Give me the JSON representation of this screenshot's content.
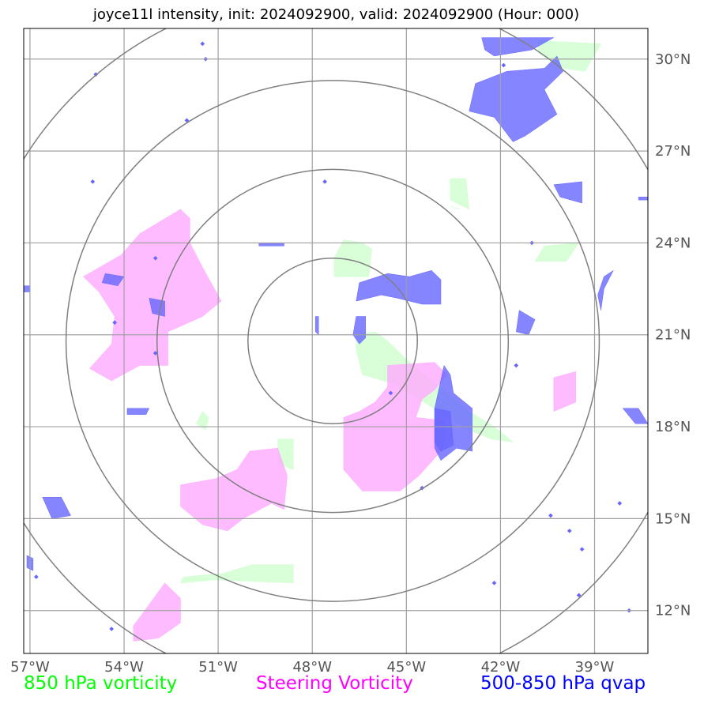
{
  "title": "joyce11l intensity, init: 2024092900, valid: 2024092900 (Hour: 000)",
  "map": {
    "lon_range": [
      -57.2,
      -37.3
    ],
    "lat_range": [
      10.6,
      31.0
    ],
    "lon_ticks": [
      {
        "value": -57,
        "label": "57°W"
      },
      {
        "value": -54,
        "label": "54°W"
      },
      {
        "value": -51,
        "label": "51°W"
      },
      {
        "value": -48,
        "label": "48°W"
      },
      {
        "value": -45,
        "label": "45°W"
      },
      {
        "value": -42,
        "label": "42°W"
      },
      {
        "value": -39,
        "label": "39°W"
      }
    ],
    "lat_ticks": [
      {
        "value": 30,
        "label": "30°N"
      },
      {
        "value": 27,
        "label": "27°N"
      },
      {
        "value": 24,
        "label": "24°N"
      },
      {
        "value": 21,
        "label": "21°N"
      },
      {
        "value": 18,
        "label": "18°N"
      },
      {
        "value": 15,
        "label": "15°N"
      },
      {
        "value": 12,
        "label": "12°N"
      }
    ],
    "range_rings_deg": [
      2.7,
      5.6,
      8.5,
      11.5
    ],
    "storm_center": {
      "lon": -47.35,
      "lat": 20.8
    },
    "colors": {
      "vorticity_850": "#ccffcc",
      "steering_vorticity": "#ffaaff",
      "qvap": "#6666ff",
      "ring": "#808080",
      "grid": "#a0a0a0"
    }
  },
  "fields": {
    "vorticity_850": [
      [
        [
          -46.4,
          24.0
        ],
        [
          -47.0,
          24.1
        ],
        [
          -47.3,
          23.5
        ],
        [
          -47.3,
          22.9
        ],
        [
          -46.2,
          22.9
        ],
        [
          -46.1,
          23.8
        ]
      ],
      [
        [
          -46.6,
          21.0
        ],
        [
          -46.0,
          21.1
        ],
        [
          -45.6,
          20.8
        ],
        [
          -45.0,
          20.2
        ],
        [
          -44.3,
          19.6
        ],
        [
          -43.6,
          19.0
        ],
        [
          -43.0,
          18.5
        ],
        [
          -42.2,
          18.0
        ],
        [
          -41.6,
          17.5
        ],
        [
          -42.3,
          17.6
        ],
        [
          -43.0,
          17.9
        ],
        [
          -43.8,
          18.4
        ],
        [
          -44.6,
          18.9
        ],
        [
          -45.4,
          19.4
        ],
        [
          -46.4,
          19.7
        ],
        [
          -46.6,
          20.5
        ]
      ],
      [
        [
          -43.6,
          26.1
        ],
        [
          -43.1,
          26.1
        ],
        [
          -43.0,
          25.1
        ],
        [
          -43.6,
          25.4
        ]
      ],
      [
        [
          -40.6,
          23.9
        ],
        [
          -39.5,
          24.0
        ],
        [
          -39.9,
          23.4
        ],
        [
          -40.9,
          23.4
        ]
      ],
      [
        [
          -43.6,
          25.2
        ],
        [
          -43.3,
          25.1
        ]
      ],
      [
        [
          -40.8,
          30.6
        ],
        [
          -38.8,
          30.5
        ],
        [
          -39.3,
          29.6
        ],
        [
          -40.0,
          29.7
        ],
        [
          -40.8,
          30.2
        ]
      ],
      [
        [
          -49.1,
          17.6
        ],
        [
          -48.6,
          17.6
        ],
        [
          -48.6,
          16.6
        ],
        [
          -49.1,
          16.8
        ]
      ],
      [
        [
          -50.9,
          13.2
        ],
        [
          -49.9,
          13.5
        ],
        [
          -48.6,
          13.5
        ],
        [
          -48.6,
          12.9
        ],
        [
          -51.1,
          13.0
        ],
        [
          -52.2,
          12.9
        ],
        [
          -52.1,
          13.1
        ]
      ],
      [
        [
          -51.5,
          18.5
        ],
        [
          -51.3,
          18.3
        ],
        [
          -51.4,
          17.9
        ],
        [
          -51.7,
          18.1
        ]
      ]
    ],
    "steering_vorticity": [
      [
        [
          -52.2,
          25.1
        ],
        [
          -53.5,
          24.3
        ],
        [
          -54.1,
          23.6
        ],
        [
          -55.3,
          22.9
        ],
        [
          -54.8,
          22.4
        ],
        [
          -54.3,
          21.6
        ],
        [
          -54.4,
          20.7
        ],
        [
          -55.1,
          19.9
        ],
        [
          -54.4,
          19.5
        ],
        [
          -53.5,
          20.0
        ],
        [
          -52.6,
          20.0
        ],
        [
          -52.6,
          21.1
        ],
        [
          -51.5,
          21.6
        ],
        [
          -50.9,
          22.1
        ],
        [
          -51.5,
          23.2
        ],
        [
          -51.9,
          24.0
        ],
        [
          -51.9,
          24.8
        ]
      ],
      [
        [
          -45.6,
          20.0
        ],
        [
          -44.1,
          20.1
        ],
        [
          -43.7,
          19.7
        ],
        [
          -44.1,
          19.2
        ],
        [
          -44.5,
          18.9
        ],
        [
          -44.7,
          18.3
        ],
        [
          -43.8,
          18.2
        ],
        [
          -43.7,
          17.8
        ],
        [
          -43.9,
          17.2
        ],
        [
          -44.6,
          16.4
        ],
        [
          -45.2,
          15.9
        ],
        [
          -46.4,
          15.9
        ],
        [
          -47.0,
          16.6
        ],
        [
          -47.0,
          18.3
        ],
        [
          -46.5,
          18.5
        ],
        [
          -46.0,
          18.8
        ],
        [
          -45.6,
          19.3
        ]
      ],
      [
        [
          -50.0,
          17.2
        ],
        [
          -49.1,
          17.3
        ],
        [
          -48.8,
          16.4
        ],
        [
          -48.9,
          15.3
        ],
        [
          -49.3,
          15.5
        ],
        [
          -50.2,
          15.0
        ],
        [
          -50.7,
          14.6
        ],
        [
          -51.5,
          14.8
        ],
        [
          -52.2,
          15.4
        ],
        [
          -52.2,
          16.1
        ],
        [
          -51.1,
          16.3
        ],
        [
          -50.4,
          16.6
        ]
      ],
      [
        [
          -40.3,
          19.6
        ],
        [
          -39.6,
          19.8
        ],
        [
          -39.6,
          18.8
        ],
        [
          -40.3,
          18.5
        ]
      ],
      [
        [
          -52.7,
          12.9
        ],
        [
          -52.2,
          12.4
        ],
        [
          -52.2,
          11.6
        ],
        [
          -52.9,
          11.1
        ],
        [
          -53.7,
          11.0
        ],
        [
          -53.7,
          11.5
        ],
        [
          -53.2,
          12.2
        ]
      ]
    ],
    "qvap": [
      [
        [
          -46.5,
          22.7
        ],
        [
          -45.6,
          23.0
        ],
        [
          -44.9,
          22.9
        ],
        [
          -44.2,
          23.1
        ],
        [
          -43.9,
          22.8
        ],
        [
          -43.9,
          22.0
        ],
        [
          -44.5,
          22.0
        ],
        [
          -45.3,
          22.2
        ],
        [
          -45.8,
          22.3
        ],
        [
          -46.6,
          22.1
        ]
      ],
      [
        [
          -44.1,
          18.6
        ],
        [
          -43.8,
          20.0
        ],
        [
          -43.6,
          19.7
        ],
        [
          -43.5,
          19.1
        ],
        [
          -42.9,
          18.6
        ],
        [
          -42.9,
          17.2
        ],
        [
          -43.4,
          17.3
        ],
        [
          -43.9,
          16.9
        ],
        [
          -44.1,
          17.3
        ]
      ],
      [
        [
          -44.1,
          18.6
        ],
        [
          -43.6,
          18.5
        ],
        [
          -43.5,
          17.4
        ],
        [
          -43.9,
          17.2
        ],
        [
          -44.1,
          17.5
        ]
      ],
      [
        [
          -46.6,
          21.6
        ],
        [
          -46.3,
          21.6
        ],
        [
          -46.3,
          20.9
        ],
        [
          -46.5,
          20.7
        ],
        [
          -46.7,
          21.0
        ]
      ],
      [
        [
          -42.8,
          29.2
        ],
        [
          -41.8,
          29.6
        ],
        [
          -40.6,
          29.7
        ],
        [
          -40.2,
          30.1
        ],
        [
          -40.0,
          29.6
        ],
        [
          -40.6,
          29.0
        ],
        [
          -40.2,
          28.2
        ],
        [
          -41.2,
          27.5
        ],
        [
          -41.6,
          27.3
        ],
        [
          -42.2,
          28.1
        ],
        [
          -43.0,
          28.3
        ]
      ],
      [
        [
          -42.6,
          30.7
        ],
        [
          -41.2,
          30.7
        ],
        [
          -40.3,
          30.7
        ],
        [
          -41.0,
          30.3
        ],
        [
          -41.6,
          30.2
        ],
        [
          -42.2,
          30.1
        ],
        [
          -42.5,
          30.3
        ]
      ],
      [
        [
          -40.3,
          25.9
        ],
        [
          -40.1,
          25.5
        ],
        [
          -39.4,
          25.3
        ],
        [
          -39.4,
          26.0
        ]
      ],
      [
        [
          -38.7,
          22.9
        ],
        [
          -38.4,
          23.1
        ],
        [
          -38.7,
          22.5
        ],
        [
          -38.8,
          21.8
        ],
        [
          -38.9,
          22.3
        ]
      ],
      [
        [
          -54.6,
          23.0
        ],
        [
          -54.0,
          22.9
        ],
        [
          -54.2,
          22.6
        ],
        [
          -54.7,
          22.7
        ]
      ],
      [
        [
          -53.2,
          22.2
        ],
        [
          -52.7,
          22.1
        ],
        [
          -52.7,
          21.6
        ],
        [
          -53.1,
          21.7
        ]
      ],
      [
        [
          -41.4,
          21.8
        ],
        [
          -40.9,
          21.5
        ],
        [
          -41.1,
          21.0
        ],
        [
          -41.5,
          21.1
        ]
      ],
      [
        [
          -47.9,
          21.6
        ],
        [
          -47.8,
          21.6
        ],
        [
          -47.8,
          21.0
        ],
        [
          -47.9,
          21.1
        ]
      ],
      [
        [
          -49.7,
          24.0
        ],
        [
          -48.9,
          24.0
        ],
        [
          -48.9,
          23.9
        ],
        [
          -49.7,
          23.9
        ]
      ],
      [
        [
          -53.9,
          18.6
        ],
        [
          -53.2,
          18.6
        ],
        [
          -53.3,
          18.4
        ],
        [
          -53.9,
          18.4
        ]
      ],
      [
        [
          -56.6,
          15.7
        ],
        [
          -56.0,
          15.7
        ],
        [
          -55.7,
          15.1
        ],
        [
          -56.3,
          15.0
        ]
      ],
      [
        [
          -38.1,
          18.6
        ],
        [
          -37.6,
          18.6
        ],
        [
          -37.3,
          18.1
        ],
        [
          -37.7,
          18.1
        ]
      ],
      [
        [
          -57.2,
          22.6
        ],
        [
          -57.0,
          22.6
        ],
        [
          -57.0,
          22.4
        ],
        [
          -57.2,
          22.4
        ]
      ],
      [
        [
          -37.6,
          25.5
        ],
        [
          -37.3,
          25.5
        ],
        [
          -37.3,
          25.4
        ],
        [
          -37.6,
          25.4
        ]
      ],
      [
        [
          -57.1,
          13.8
        ],
        [
          -56.9,
          13.7
        ],
        [
          -56.9,
          13.3
        ],
        [
          -57.1,
          13.4
        ]
      ]
    ],
    "qvap_dots": [
      [
        -51.5,
        30.5
      ],
      [
        -54.9,
        29.5
      ],
      [
        -52.0,
        28.0
      ],
      [
        -55.0,
        26.0
      ],
      [
        -53.0,
        23.5
      ],
      [
        -53.0,
        20.4
      ],
      [
        -54.3,
        21.4
      ],
      [
        -42.2,
        12.9
      ],
      [
        -39.4,
        14.0
      ],
      [
        -38.2,
        15.5
      ],
      [
        -39.8,
        14.6
      ],
      [
        -44.5,
        16.0
      ],
      [
        -47.6,
        26.0
      ],
      [
        -41.0,
        24.0
      ],
      [
        -37.9,
        12.0
      ],
      [
        -56.8,
        13.1
      ],
      [
        -54.4,
        11.4
      ],
      [
        -41.5,
        20.0
      ],
      [
        -45.5,
        19.1
      ],
      [
        -51.4,
        30.0
      ],
      [
        -41.9,
        29.8
      ],
      [
        -39.5,
        12.5
      ],
      [
        -40.4,
        15.1
      ]
    ]
  },
  "legend": {
    "vorticity_850": {
      "label": "850 hPa vorticity",
      "color": "#00ff00"
    },
    "steering_vorticity": {
      "label": "Steering Vorticity",
      "color": "#ff00ff"
    },
    "qvap": {
      "label": "500-850 hPa qvap",
      "color": "#0000ff"
    }
  }
}
